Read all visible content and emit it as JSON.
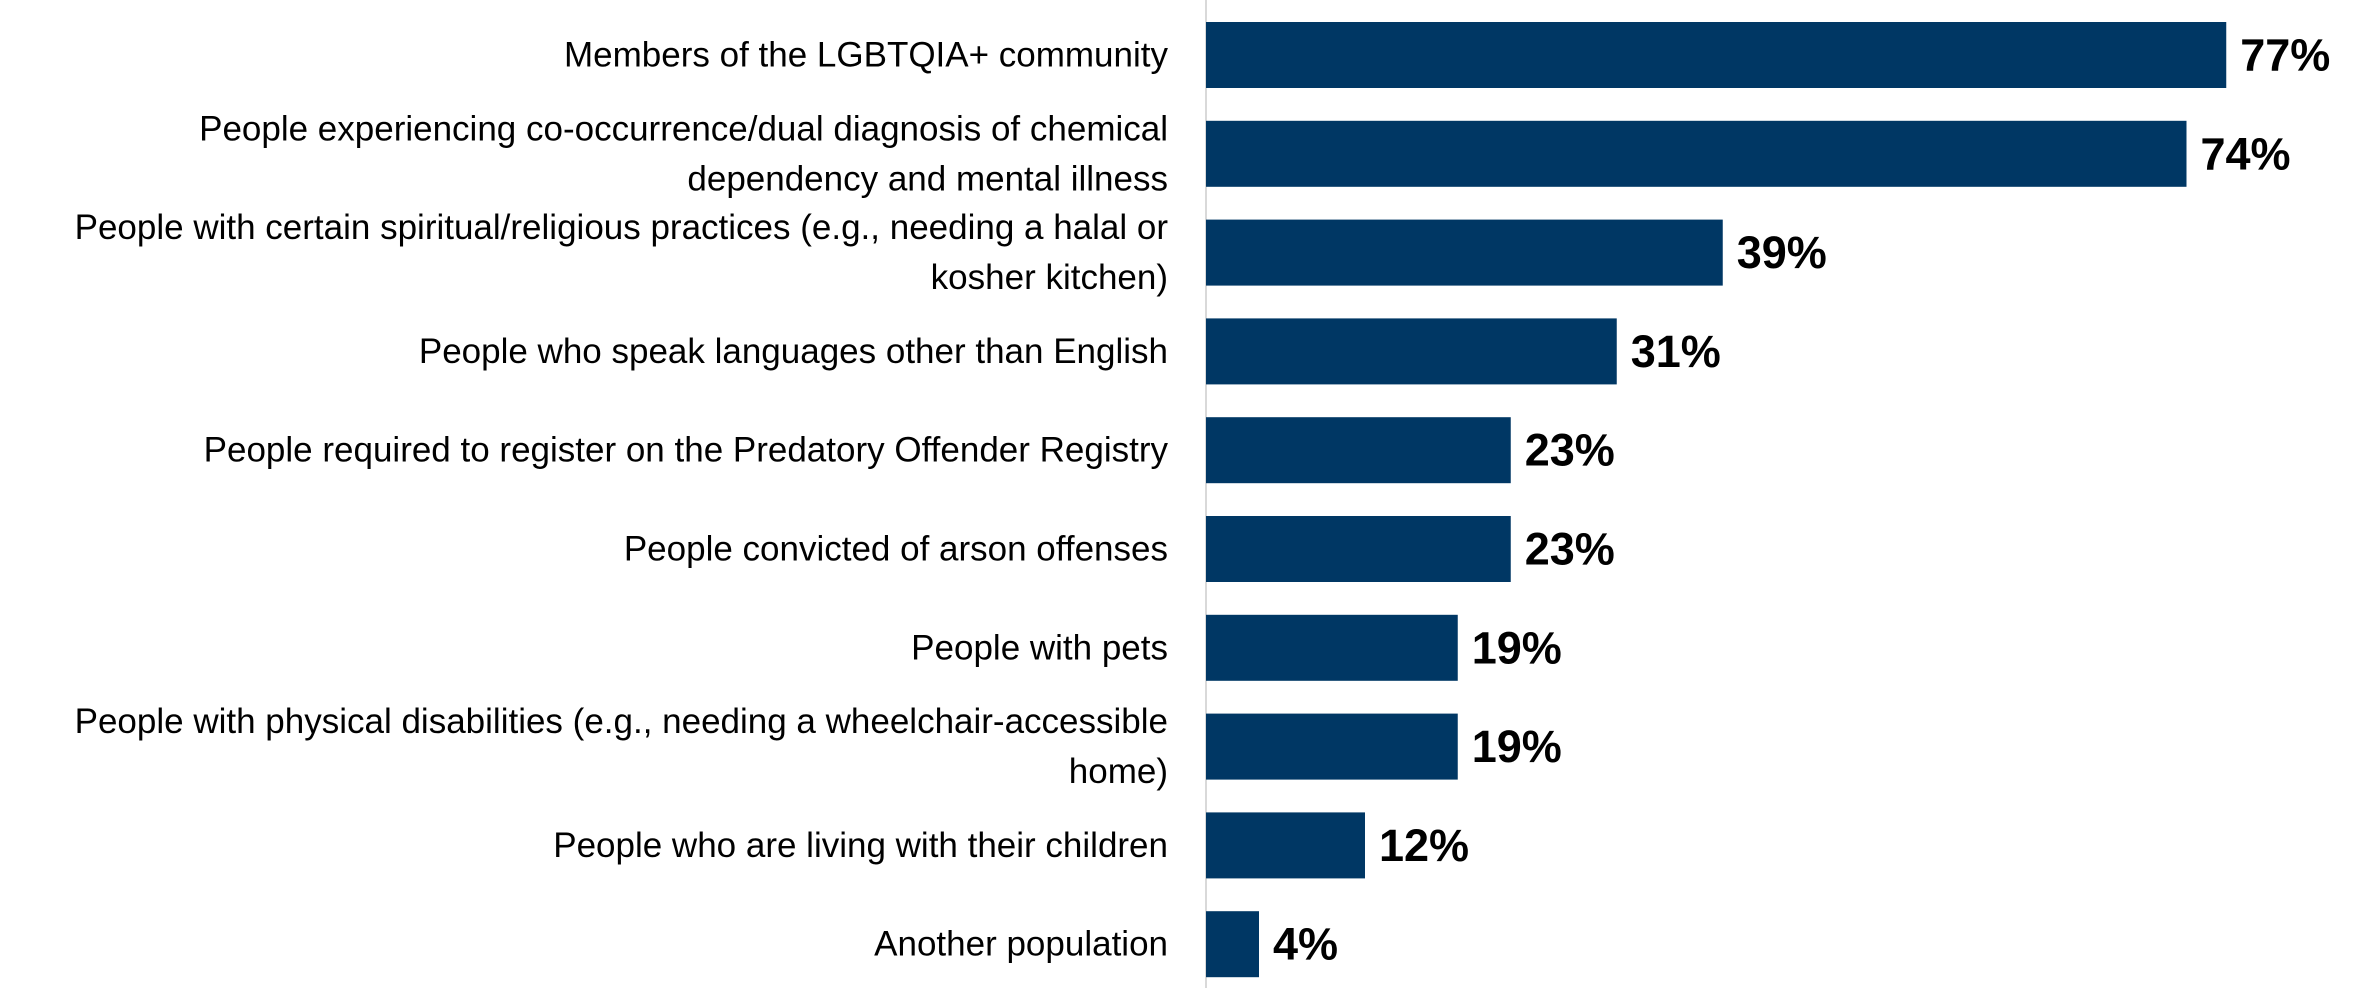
{
  "chart_data": {
    "type": "bar",
    "orientation": "horizontal",
    "categories": [
      [
        "Members of the LGBTQIA+ community"
      ],
      [
        "People experiencing co-occurrence/dual diagnosis of chemical",
        "dependency and mental illness"
      ],
      [
        "People with certain spiritual/religious practices (e.g., needing a halal or",
        "kosher kitchen)"
      ],
      [
        "People who speak languages other than English"
      ],
      [
        "People required to register on the Predatory Offender Registry"
      ],
      [
        "People convicted of arson offenses"
      ],
      [
        "People with pets"
      ],
      [
        "People with physical disabilities (e.g., needing a wheelchair-accessible",
        "home)"
      ],
      [
        "People who are living with their children"
      ],
      [
        "Another population"
      ]
    ],
    "values": [
      77,
      74,
      39,
      31,
      23,
      23,
      19,
      19,
      12,
      4
    ],
    "value_labels": [
      "77%",
      "74%",
      "39%",
      "31%",
      "23%",
      "23%",
      "19%",
      "19%",
      "12%",
      "4%"
    ],
    "bar_color": "#003764",
    "axis_color": "#d9d9d9",
    "xlim": [
      0,
      100
    ],
    "grid": false,
    "legend": "none",
    "title": "",
    "xlabel": "",
    "ylabel": ""
  }
}
